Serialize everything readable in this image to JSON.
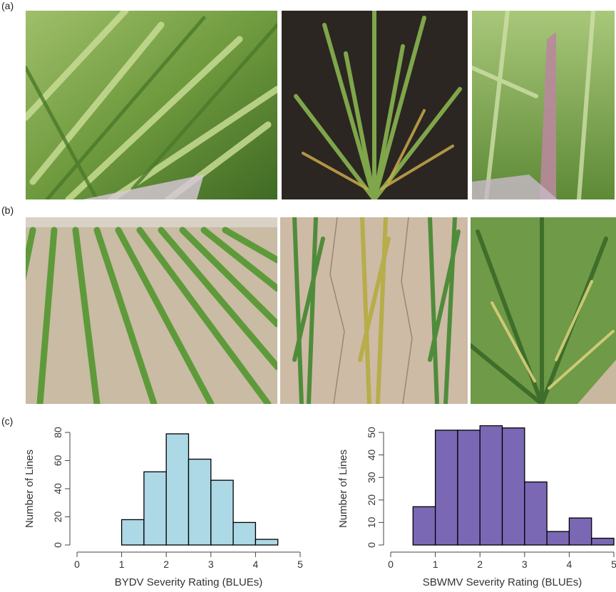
{
  "panels": {
    "a": "(a)",
    "b": "(b)",
    "c": "(c)"
  },
  "photos_a": [
    {
      "name": "photo-wheat-heads-closeup",
      "theme": "green"
    },
    {
      "name": "photo-wheat-plant-base",
      "theme": "dark"
    },
    {
      "name": "photo-wheat-purple-leaf",
      "theme": "green"
    }
  ],
  "photos_b": [
    {
      "name": "photo-field-rows",
      "theme": "field"
    },
    {
      "name": "photo-three-rows-cracked-soil",
      "theme": "soil"
    },
    {
      "name": "photo-yellowing-plants",
      "theme": "green"
    }
  ],
  "chart_data": [
    {
      "type": "bar",
      "subtype": "histogram",
      "bin_edges": [
        1.0,
        1.5,
        2.0,
        2.5,
        3.0,
        3.5,
        4.0,
        4.5
      ],
      "values": [
        18,
        52,
        79,
        61,
        46,
        16,
        4
      ],
      "color": "#add8e6",
      "xlabel": "BYDV Severity Rating (BLUEs)",
      "ylabel": "Number of Lines",
      "xlim": [
        0,
        5
      ],
      "ylim": [
        0,
        80
      ],
      "xticks": [
        0,
        1,
        2,
        3,
        4,
        5
      ],
      "yticks": [
        0,
        20,
        40,
        60,
        80
      ],
      "grid": false
    },
    {
      "type": "bar",
      "subtype": "histogram",
      "bin_edges": [
        0.5,
        1.0,
        1.5,
        2.0,
        2.5,
        3.0,
        3.5,
        4.0,
        4.5,
        5.0
      ],
      "values": [
        17,
        51,
        51,
        53,
        52,
        28,
        6,
        12,
        3
      ],
      "color": "#7b68b4",
      "xlabel": "SBWMV Severity Rating (BLUEs)",
      "ylabel": "Number of Lines",
      "xlim": [
        0,
        5
      ],
      "ylim": [
        0,
        50
      ],
      "xticks": [
        0,
        1,
        2,
        3,
        4,
        5
      ],
      "yticks": [
        0,
        10,
        20,
        30,
        40,
        50
      ],
      "grid": false
    }
  ]
}
